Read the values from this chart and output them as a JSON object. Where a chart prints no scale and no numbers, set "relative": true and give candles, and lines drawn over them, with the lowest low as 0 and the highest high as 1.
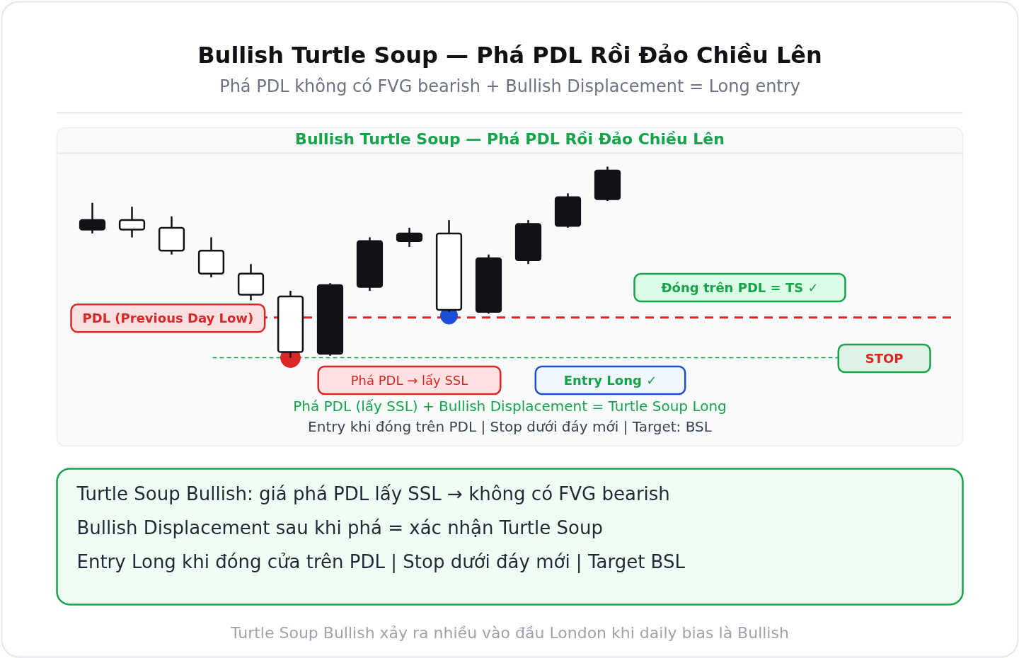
{
  "chart_data": {
    "type": "candlestick",
    "title": "Bullish Turtle Soup — Phá PDL Rồi Đảo Chiều Lên",
    "subtitle": "Phá PDL không có FVG bearish + Bullish Displacement = Long entry",
    "categories": [
      null,
      null,
      null,
      null,
      null,
      null,
      null,
      null,
      null,
      null,
      null,
      null,
      null,
      null
    ],
    "relative": true,
    "tick_labels": false,
    "ohlc": [
      [
        0.67,
        0.81,
        0.65,
        0.72
      ],
      [
        0.72,
        0.79,
        0.63,
        0.67
      ],
      [
        0.68,
        0.74,
        0.54,
        0.56
      ],
      [
        0.56,
        0.63,
        0.42,
        0.44
      ],
      [
        0.44,
        0.49,
        0.3,
        0.33
      ],
      [
        0.32,
        0.35,
        0.0,
        0.03
      ],
      [
        0.02,
        0.39,
        0.01,
        0.38
      ],
      [
        0.37,
        0.63,
        0.35,
        0.61
      ],
      [
        0.61,
        0.68,
        0.58,
        0.65
      ],
      [
        0.65,
        0.72,
        0.24,
        0.25
      ],
      [
        0.24,
        0.54,
        0.23,
        0.52
      ],
      [
        0.51,
        0.72,
        0.49,
        0.7
      ],
      [
        0.69,
        0.86,
        0.68,
        0.84
      ],
      [
        0.83,
        1.0,
        0.82,
        0.98
      ]
    ],
    "colors": [
      "#111216",
      "#ffffff",
      "#ffffff",
      "#ffffff",
      "#ffffff",
      "#ffffff",
      "#111216",
      "#111216",
      "#111216",
      "#ffffff",
      "#111216",
      "#111216",
      "#111216",
      "#111216"
    ],
    "marker": "circle",
    "series": [
      {
        "type": "scatter",
        "color": "#dc2626",
        "values": [
          null,
          null,
          null,
          null,
          null,
          0.0,
          null,
          null,
          null,
          null,
          null,
          null,
          null,
          null
        ]
      },
      {
        "type": "scatter",
        "color": "#1d4ed8",
        "values": [
          null,
          null,
          null,
          null,
          null,
          null,
          null,
          null,
          null,
          0.22,
          null,
          null,
          null,
          null
        ]
      }
    ],
    "ref_lines": [
      {
        "axis": "y",
        "value": 0.21,
        "label": "PDL (Previous Day Low)",
        "color": "#dc2626",
        "line_style": "dashed"
      },
      {
        "axis": "y",
        "value": 0.0,
        "label": "STOP",
        "color": "#16a34a",
        "line_style": "dashed"
      }
    ],
    "annotations": [
      "Bullish Turtle Soup — Phá PDL Rồi Đảo Chiều Lên",
      "Đóng trên PDL = TS ✓",
      "Entry Long ✓",
      "Phá PDL → lấy SSL",
      "Phá PDL (lấy SSL) + Bullish Displacement = Turtle Soup Long",
      "Entry khi đóng trên PDL | Stop dưới đáy mới | Target: BSL",
      "Turtle Soup Bullish: giá phá PDL lấy SSL → không có FVG bearish",
      "Bullish Displacement sau khi phá = xác nhận Turtle Soup",
      "Entry Long khi đóng cửa trên PDL | Stop dưới đáy mới | Target BSL",
      "Turtle Soup Bullish xảy ra nhiều vào đầu London khi daily bias là Bullish"
    ]
  }
}
